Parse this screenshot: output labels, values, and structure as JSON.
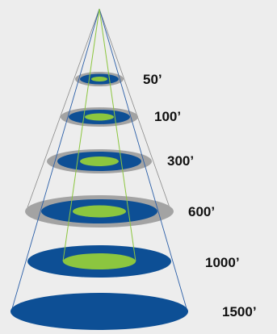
{
  "colors": {
    "background": "#ededed",
    "outer_ring": "#a3a3a3",
    "beam_ellipse": "#0d4f95",
    "spot_ellipse": "#8cc63f",
    "outer_cone_line": "#8a8a8a",
    "beam_cone_line": "#2b5fa8",
    "spot_cone_line": "#8cc63f",
    "label_text": "#111111"
  },
  "levels": [
    {
      "label": "50’",
      "has_outer_ring": true,
      "has_spot": true
    },
    {
      "label": "100’",
      "has_outer_ring": true,
      "has_spot": true
    },
    {
      "label": "300’",
      "has_outer_ring": true,
      "has_spot": true
    },
    {
      "label": "600’",
      "has_outer_ring": true,
      "has_spot": true
    },
    {
      "label": "1000’",
      "has_outer_ring": false,
      "has_spot": true
    },
    {
      "label": "1500’",
      "has_outer_ring": false,
      "has_spot": false
    }
  ]
}
